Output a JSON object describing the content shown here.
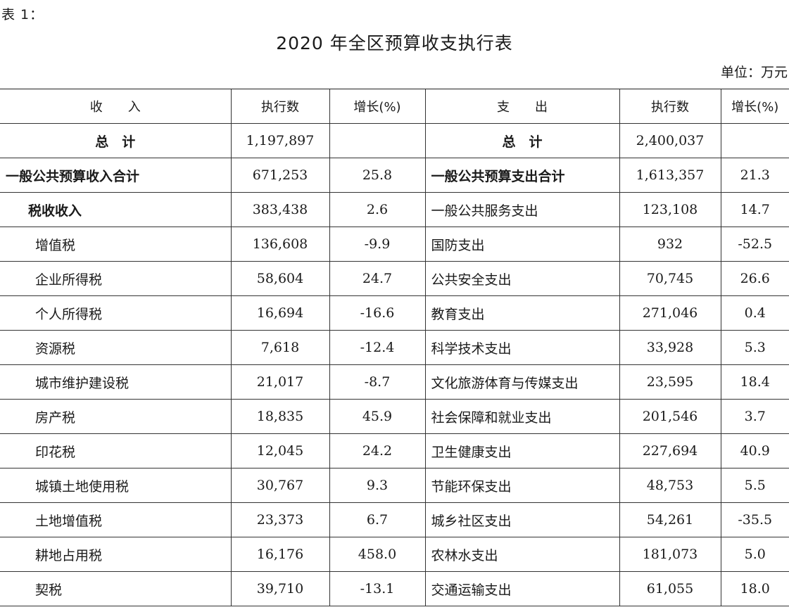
{
  "table_label": "表 1：",
  "title": "2020 年全区预算收支执行表",
  "unit": "单位：万元",
  "headers": {
    "income": "收　　入",
    "income_value": "执行数",
    "income_growth": "增长(%)",
    "expense": "支　　出",
    "expense_value": "执行数",
    "expense_growth": "增长(%)"
  },
  "total": {
    "income_label": "总　计",
    "income_value": "1,197,897",
    "income_growth": "",
    "expense_label": "总　计",
    "expense_value": "2,400,037",
    "expense_growth": ""
  },
  "rows": [
    {
      "income": "一般公共预算收入合计",
      "income_value": "671,253",
      "income_growth": "25.8",
      "expense": "一般公共预算支出合计",
      "expense_value": "1,613,357",
      "expense_growth": "21.3"
    },
    {
      "income": "税收收入",
      "income_value": "383,438",
      "income_growth": "2.6",
      "expense": "一般公共服务支出",
      "expense_value": "123,108",
      "expense_growth": "14.7"
    },
    {
      "income": "增值税",
      "income_value": "136,608",
      "income_growth": "-9.9",
      "expense": "国防支出",
      "expense_value": "932",
      "expense_growth": "-52.5"
    },
    {
      "income": "企业所得税",
      "income_value": "58,604",
      "income_growth": "24.7",
      "expense": "公共安全支出",
      "expense_value": "70,745",
      "expense_growth": "26.6"
    },
    {
      "income": "个人所得税",
      "income_value": "16,694",
      "income_growth": "-16.6",
      "expense": "教育支出",
      "expense_value": "271,046",
      "expense_growth": "0.4"
    },
    {
      "income": "资源税",
      "income_value": "7,618",
      "income_growth": "-12.4",
      "expense": "科学技术支出",
      "expense_value": "33,928",
      "expense_growth": "5.3"
    },
    {
      "income": "城市维护建设税",
      "income_value": "21,017",
      "income_growth": "-8.7",
      "expense": "文化旅游体育与传媒支出",
      "expense_value": "23,595",
      "expense_growth": "18.4"
    },
    {
      "income": "房产税",
      "income_value": "18,835",
      "income_growth": "45.9",
      "expense": "社会保障和就业支出",
      "expense_value": "201,546",
      "expense_growth": "3.7"
    },
    {
      "income": "印花税",
      "income_value": "12,045",
      "income_growth": "24.2",
      "expense": "卫生健康支出",
      "expense_value": "227,694",
      "expense_growth": "40.9"
    },
    {
      "income": "城镇土地使用税",
      "income_value": "30,767",
      "income_growth": "9.3",
      "expense": "节能环保支出",
      "expense_value": "48,753",
      "expense_growth": "5.5"
    },
    {
      "income": "土地增值税",
      "income_value": "23,373",
      "income_growth": "6.7",
      "expense": "城乡社区支出",
      "expense_value": "54,261",
      "expense_growth": "-35.5"
    },
    {
      "income": "耕地占用税",
      "income_value": "16,176",
      "income_growth": "458.0",
      "expense": "农林水支出",
      "expense_value": "181,073",
      "expense_growth": "5.0"
    },
    {
      "income": "契税",
      "income_value": "39,710",
      "income_growth": "-13.1",
      "expense": "交通运输支出",
      "expense_value": "61,055",
      "expense_growth": "18.0"
    }
  ]
}
